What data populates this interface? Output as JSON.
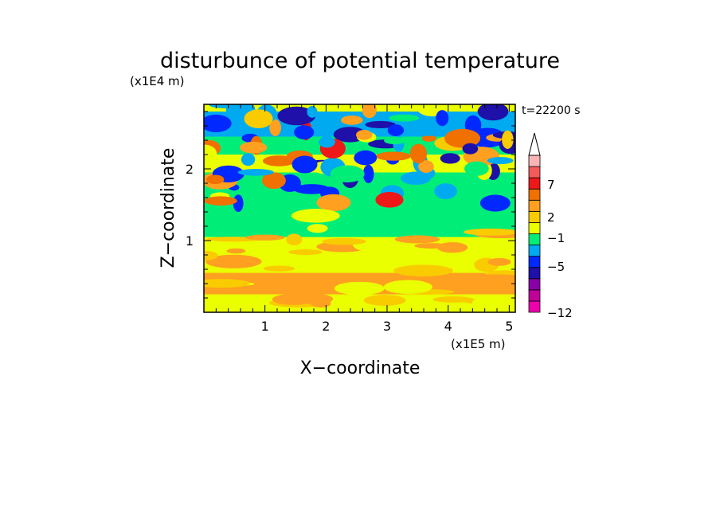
{
  "chart_data": {
    "type": "heatmap",
    "title": "disturbunce of potential temperature",
    "time_label": "t=22200 s",
    "xlabel": "X−coordinate",
    "ylabel": "Z−coordinate",
    "x_unit": "(x1E5 m)",
    "y_unit": "(x1E4 m)",
    "xlim": [
      0,
      5.1
    ],
    "ylim": [
      0,
      2.9
    ],
    "x_ticks": [
      1,
      2,
      3,
      4,
      5
    ],
    "x_tick_labels": [
      "1",
      "2",
      "3",
      "4",
      "5"
    ],
    "y_ticks": [
      1,
      2
    ],
    "y_tick_labels": [
      "1",
      "2"
    ],
    "colorbar": {
      "levels": [
        {
          "color": "#ef00ae"
        },
        {
          "color": "#c0009b"
        },
        {
          "color": "#8a00a8"
        },
        {
          "color": "#1e10a8"
        },
        {
          "color": "#0028ff"
        },
        {
          "color": "#00aaf0"
        },
        {
          "color": "#00ee77"
        },
        {
          "color": "#eaff00"
        },
        {
          "color": "#f9cc00"
        },
        {
          "color": "#ffa020"
        },
        {
          "color": "#f07000"
        },
        {
          "color": "#ee1818"
        },
        {
          "color": "#f55a5a"
        },
        {
          "color": "#f9b5b5"
        }
      ],
      "tick_labels": [
        "7",
        "2",
        "−1",
        "−5",
        "−12"
      ]
    },
    "field_rows": [
      {
        "z": [
          2.8,
          2.9
        ],
        "level": 7
      },
      {
        "z": [
          2.45,
          2.8
        ],
        "level": 5
      },
      {
        "z": [
          2.2,
          2.45
        ],
        "level": 6
      },
      {
        "z": [
          1.95,
          2.2
        ],
        "level": 7
      },
      {
        "z": [
          1.4,
          1.95
        ],
        "level": 6
      },
      {
        "z": [
          1.05,
          1.4
        ],
        "level": 6
      },
      {
        "z": [
          0.55,
          1.05
        ],
        "level": 7
      },
      {
        "z": [
          0.25,
          0.55
        ],
        "level": 9
      },
      {
        "z": [
          0.0,
          0.25
        ],
        "level": 7
      }
    ]
  }
}
